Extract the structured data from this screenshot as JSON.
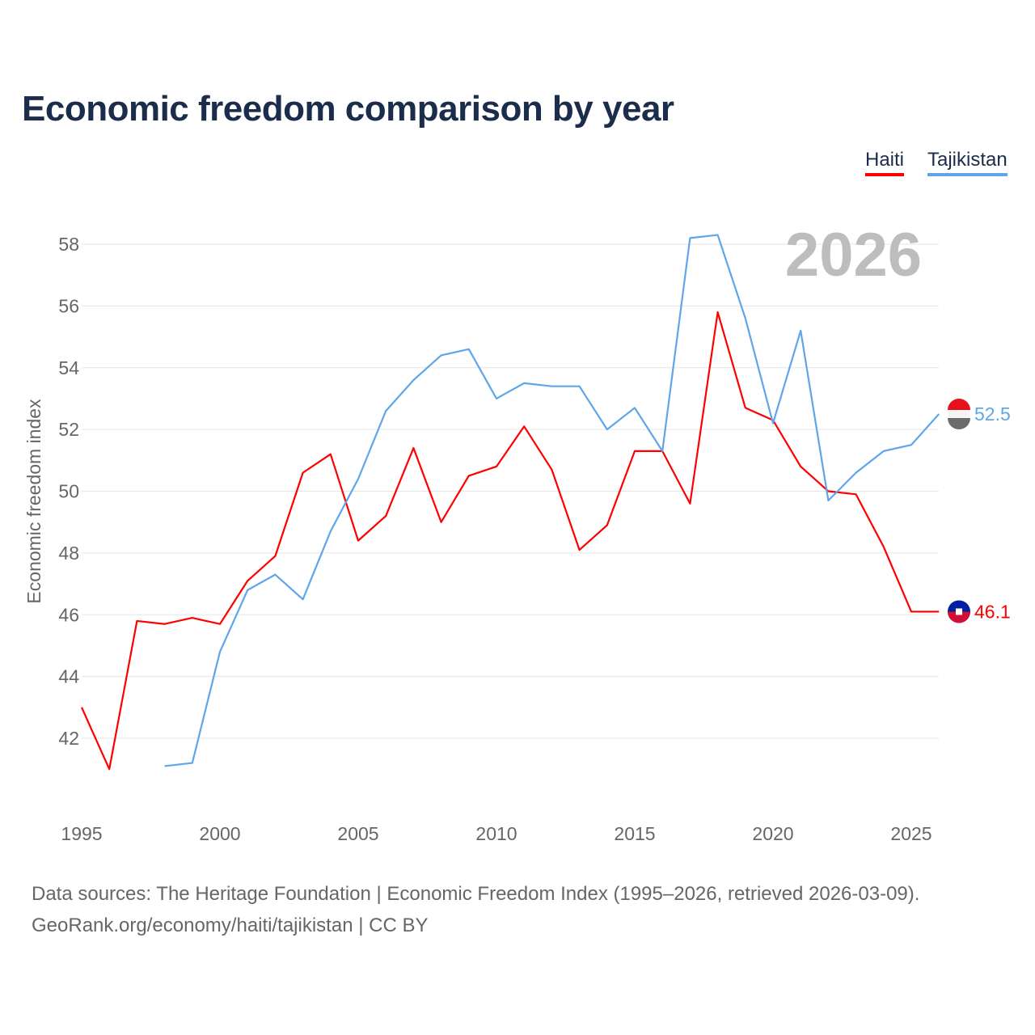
{
  "title": "Economic freedom comparison by year",
  "legend": [
    "Haiti",
    "Tajikistan"
  ],
  "footer": {
    "line1": "Data sources: The Heritage Foundation | Economic Freedom Index (1995–2026, retrieved 2026-03-09).",
    "line2": "GeoRank.org/economy/haiti/tajikistan | CC BY"
  },
  "chart_data": {
    "type": "line",
    "title": "Economic freedom comparison by year",
    "ylabel": "Economic freedom index",
    "xlabel": "",
    "year_watermark": "2026",
    "xlim": [
      1995,
      2026
    ],
    "ylim": [
      40,
      59
    ],
    "xticks": [
      "1995",
      "2000",
      "2005",
      "2010",
      "2015",
      "2020",
      "2025"
    ],
    "yticks": [
      "42",
      "44",
      "46",
      "48",
      "50",
      "52",
      "54",
      "56",
      "58"
    ],
    "grid": true,
    "legend_position": "top-right",
    "series": [
      {
        "name": "Haiti",
        "color": "#ff0000",
        "end_label": "46.1",
        "x": [
          1995,
          1996,
          1997,
          1998,
          1999,
          2000,
          2001,
          2002,
          2003,
          2004,
          2005,
          2006,
          2007,
          2008,
          2009,
          2010,
          2011,
          2012,
          2013,
          2014,
          2015,
          2016,
          2017,
          2018,
          2019,
          2020,
          2021,
          2022,
          2023,
          2024,
          2025,
          2026
        ],
        "values": [
          43.0,
          41.0,
          45.8,
          45.7,
          45.9,
          45.7,
          47.1,
          47.9,
          50.6,
          51.2,
          48.4,
          49.2,
          51.4,
          49.0,
          50.5,
          50.8,
          52.1,
          50.7,
          48.1,
          48.9,
          51.3,
          51.3,
          49.6,
          55.8,
          52.7,
          52.3,
          50.8,
          50.0,
          49.9,
          48.2,
          46.1,
          46.1
        ]
      },
      {
        "name": "Tajikistan",
        "color": "#5ea5ea",
        "end_label": "52.5",
        "x": [
          1998,
          1999,
          2000,
          2001,
          2002,
          2003,
          2004,
          2005,
          2006,
          2007,
          2008,
          2009,
          2010,
          2011,
          2012,
          2013,
          2014,
          2015,
          2016,
          2017,
          2018,
          2019,
          2020,
          2021,
          2022,
          2023,
          2024,
          2025,
          2026
        ],
        "values": [
          41.1,
          41.2,
          44.8,
          46.8,
          47.3,
          46.5,
          48.7,
          50.4,
          52.6,
          53.6,
          54.4,
          54.6,
          53.0,
          53.5,
          53.4,
          53.4,
          52.0,
          52.7,
          51.3,
          58.2,
          58.3,
          55.6,
          52.2,
          55.2,
          49.7,
          50.6,
          51.3,
          51.5,
          52.5
        ]
      }
    ]
  }
}
